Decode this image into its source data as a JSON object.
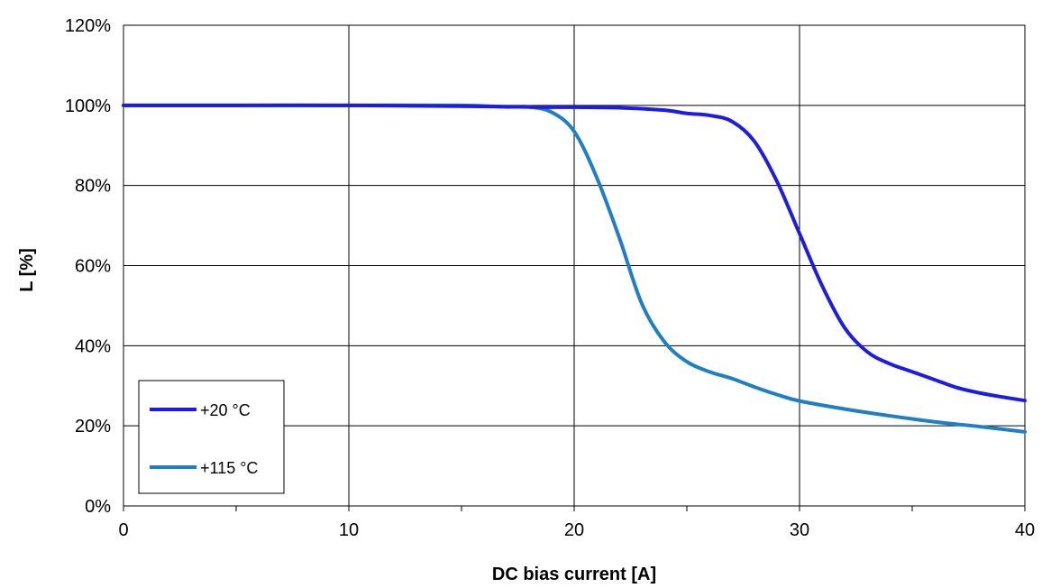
{
  "chart_data": {
    "type": "line",
    "title": "",
    "xlabel": "DC bias current [A]",
    "ylabel": "L [%]",
    "xlim": [
      0,
      40
    ],
    "ylim": [
      0,
      120
    ],
    "x_ticks": [
      0,
      10,
      20,
      30,
      40
    ],
    "x_tick_labels": [
      "0",
      "10",
      "20",
      "30",
      "40"
    ],
    "y_ticks": [
      0,
      20,
      40,
      60,
      80,
      100,
      120
    ],
    "y_tick_labels": [
      "0%",
      "20%",
      "40%",
      "60%",
      "80%",
      "100%",
      "120%"
    ],
    "grid": true,
    "legend_position": "bottom-left",
    "series": [
      {
        "name": "+20 °C",
        "color": "#1c1ce6",
        "x": [
          0,
          5,
          10,
          15,
          18,
          22,
          24,
          25,
          26,
          27,
          28,
          29,
          30,
          31,
          32,
          33,
          34,
          35,
          36,
          37,
          38,
          39,
          40
        ],
        "y": [
          100,
          100,
          100,
          99.8,
          99.6,
          99.4,
          98.8,
          98,
          97.5,
          96,
          91,
          81,
          68,
          55,
          44.5,
          38.5,
          35.5,
          33.5,
          31.5,
          29.5,
          28.2,
          27.2,
          26.3
        ]
      },
      {
        "name": "+115 °C",
        "color": "#1f7fc4",
        "x": [
          0,
          5,
          10,
          15,
          17,
          18,
          19,
          20,
          21,
          22,
          23,
          24,
          25,
          26,
          27,
          28,
          29,
          30,
          32,
          34,
          36,
          38,
          40
        ],
        "y": [
          100,
          100,
          100,
          100,
          99.6,
          99.6,
          98.3,
          93.5,
          82,
          67,
          50.5,
          41,
          36,
          33.5,
          31.8,
          29.7,
          27.8,
          26.2,
          24.2,
          22.5,
          21,
          19.8,
          18.5
        ]
      }
    ]
  }
}
